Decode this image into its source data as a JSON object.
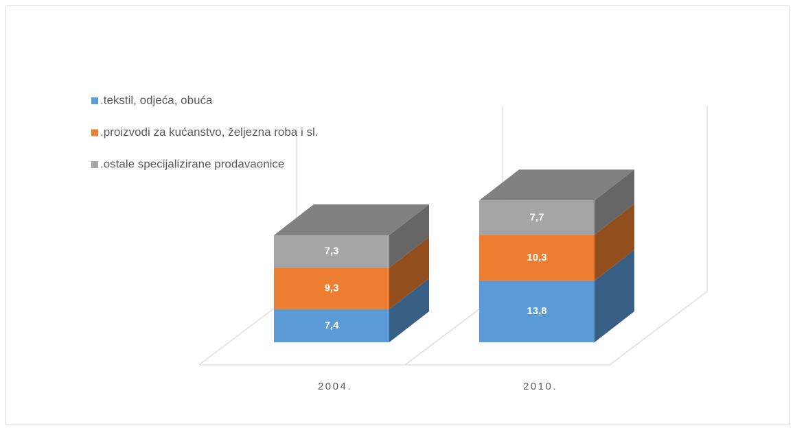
{
  "chart_data": {
    "type": "bar3d_stacked",
    "categories": [
      "2004.",
      "2010."
    ],
    "series": [
      {
        "name": ".tekstil, odjeća, obuća",
        "color": "#5b9bd5",
        "values": [
          7.4,
          13.8
        ],
        "value_labels": [
          "7,4",
          "13,8"
        ]
      },
      {
        "name": ".proizvodi za kućanstvo, željezna roba i sl.",
        "color": "#ed7d31",
        "values": [
          9.3,
          10.3
        ],
        "value_labels": [
          "9,3",
          "10,3"
        ]
      },
      {
        "name": ".ostale specijalizirane prodavaonice",
        "color": "#a5a5a5",
        "values": [
          7.3,
          7.7
        ],
        "value_labels": [
          "7,3",
          "7,7"
        ]
      }
    ],
    "legend": "top-left"
  }
}
